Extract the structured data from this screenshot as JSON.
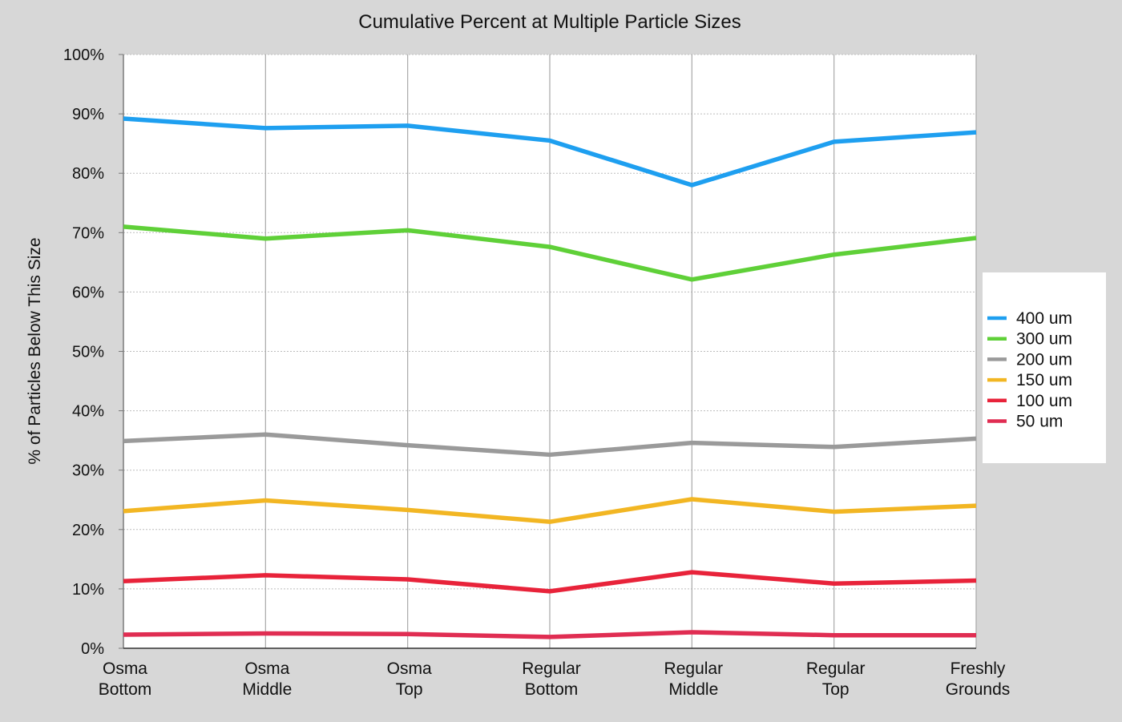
{
  "chart_data": {
    "type": "line",
    "title": "Cumulative Percent at Multiple Particle Sizes",
    "xlabel": "",
    "ylabel": "% of Particles Below This Size",
    "categories": [
      [
        "Osma",
        "Bottom"
      ],
      [
        "Osma",
        "Middle"
      ],
      [
        "Osma",
        "Top"
      ],
      [
        "Regular",
        "Bottom"
      ],
      [
        "Regular",
        "Middle"
      ],
      [
        "Regular",
        "Top"
      ],
      [
        "Freshly",
        "Grounds"
      ]
    ],
    "ylim": [
      0,
      100
    ],
    "yticks": [
      0,
      10,
      20,
      30,
      40,
      50,
      60,
      70,
      80,
      90,
      100
    ],
    "ytick_labels": [
      "0%",
      "10%",
      "20%",
      "30%",
      "40%",
      "50%",
      "60%",
      "70%",
      "80%",
      "90%",
      "100%"
    ],
    "grid": true,
    "legend_position": "right",
    "series": [
      {
        "name": "400 um",
        "color": "#1e9ff0",
        "values": [
          89.2,
          87.6,
          88.0,
          85.5,
          78.0,
          85.3,
          86.9
        ]
      },
      {
        "name": "300 um",
        "color": "#5fd038",
        "values": [
          71.0,
          69.0,
          70.4,
          67.6,
          62.1,
          66.3,
          69.1
        ]
      },
      {
        "name": "200 um",
        "color": "#9a9a9a",
        "values": [
          34.9,
          36.0,
          34.2,
          32.6,
          34.6,
          33.9,
          35.3
        ]
      },
      {
        "name": "150 um",
        "color": "#f2b623",
        "values": [
          23.1,
          24.9,
          23.3,
          21.3,
          25.1,
          23.0,
          24.0
        ]
      },
      {
        "name": "100 um",
        "color": "#e8233a",
        "values": [
          11.3,
          12.3,
          11.6,
          9.6,
          12.8,
          10.9,
          11.4
        ]
      },
      {
        "name": "50 um",
        "color": "#e02d52",
        "values": [
          2.3,
          2.5,
          2.4,
          1.9,
          2.7,
          2.2,
          2.2
        ]
      }
    ]
  }
}
